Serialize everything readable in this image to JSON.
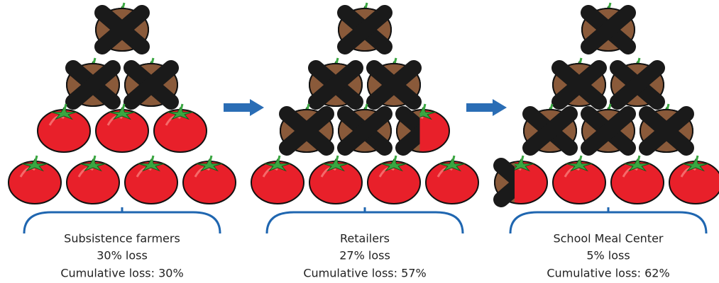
{
  "stages": [
    {
      "name": "Subsistence farmers",
      "loss": "30% loss",
      "cumulative": "Cumulative loss: 30%"
    },
    {
      "name": "Retailers",
      "loss": "27% loss",
      "cumulative": "Cumulative loss: 57%"
    },
    {
      "name": "School Meal Center",
      "loss": "5% loss",
      "cumulative": "Cumulative loss: 62%"
    }
  ]
}
